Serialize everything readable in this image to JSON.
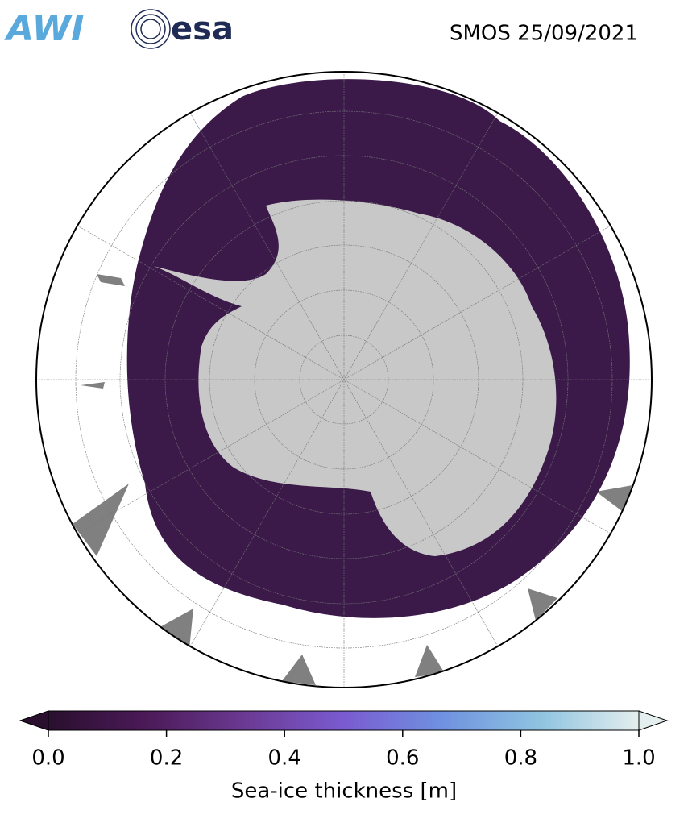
{
  "header": {
    "logos": [
      "AWI",
      "esa"
    ],
    "title": "SMOS 25/09/2021"
  },
  "colorbar": {
    "label": "Sea-ice thickness [m]",
    "lim": [
      0,
      1
    ],
    "ticks": [
      {
        "value": 0,
        "label": "0.0"
      },
      0.2,
      0.4,
      0.6,
      0.8,
      {
        "value": 1,
        "label": "1.0"
      }
    ],
    "colors": [
      "#2a0f2e",
      "#4b1a58",
      "#6b3a93",
      "#7a5bd0",
      "#6f91e0",
      "#8fc4e0",
      "#e4eeee"
    ]
  }
}
